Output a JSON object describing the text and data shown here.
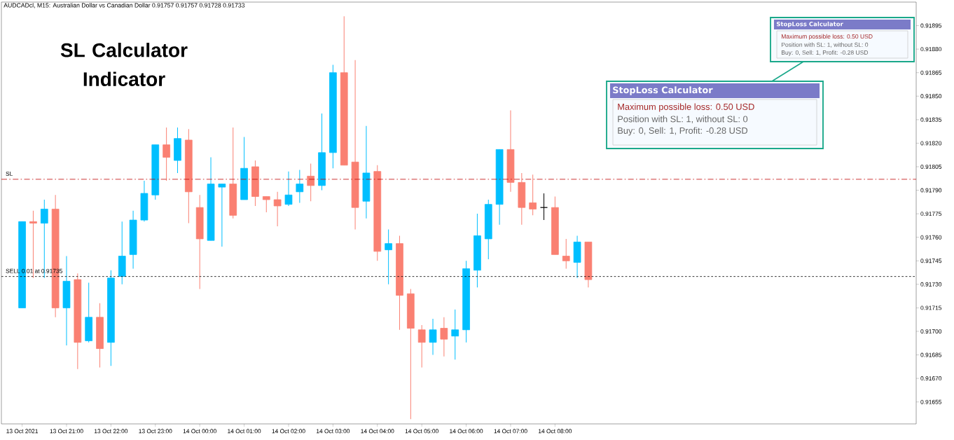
{
  "chart_data": {
    "type": "candlestick",
    "title": "SL Calculator Indicator",
    "subtitle": "AUDCADcl, M15:  Australian Dollar vs Canadian Dollar  0.91757 0.91757 0.91728 0.91733",
    "x": [
      "2021-10-13T20:00",
      "2021-10-13T20:15",
      "2021-10-13T20:30",
      "2021-10-13T20:45",
      "2021-10-13T21:00",
      "2021-10-13T21:15",
      "2021-10-13T21:30",
      "2021-10-13T21:45",
      "2021-10-13T22:00",
      "2021-10-13T22:15",
      "2021-10-13T22:30",
      "2021-10-13T22:45",
      "2021-10-13T23:00",
      "2021-10-13T23:15",
      "2021-10-13T23:30",
      "2021-10-13T23:45",
      "2021-10-14T00:00",
      "2021-10-14T00:15",
      "2021-10-14T00:30",
      "2021-10-14T00:45",
      "2021-10-14T01:00",
      "2021-10-14T01:15",
      "2021-10-14T01:30",
      "2021-10-14T01:45",
      "2021-10-14T02:00",
      "2021-10-14T02:15",
      "2021-10-14T02:30",
      "2021-10-14T02:45",
      "2021-10-14T03:00",
      "2021-10-14T03:15",
      "2021-10-14T03:30",
      "2021-10-14T03:45",
      "2021-10-14T04:00",
      "2021-10-14T04:15",
      "2021-10-14T04:30",
      "2021-10-14T04:45",
      "2021-10-14T05:00",
      "2021-10-14T05:15",
      "2021-10-14T05:30",
      "2021-10-14T05:45",
      "2021-10-14T06:00",
      "2021-10-14T06:15",
      "2021-10-14T06:30",
      "2021-10-14T06:45",
      "2021-10-14T07:00",
      "2021-10-14T07:15",
      "2021-10-14T07:30",
      "2021-10-14T07:45",
      "2021-10-14T08:00",
      "2021-10-14T08:15",
      "2021-10-14T08:30",
      "2021-10-14T08:45"
    ],
    "ohlc": [
      [
        0.91715,
        0.9177,
        0.91715,
        0.9177
      ],
      [
        0.9177,
        0.91777,
        0.91734,
        0.91769
      ],
      [
        0.91769,
        0.91784,
        0.91734,
        0.91778
      ],
      [
        0.91778,
        0.91787,
        0.91709,
        0.91715
      ],
      [
        0.91715,
        0.91748,
        0.91691,
        0.91732
      ],
      [
        0.91733,
        0.91737,
        0.91676,
        0.91693
      ],
      [
        0.91694,
        0.91731,
        0.91693,
        0.91709
      ],
      [
        0.91709,
        0.91718,
        0.91677,
        0.91689
      ],
      [
        0.91693,
        0.91739,
        0.91678,
        0.91734
      ],
      [
        0.91735,
        0.9177,
        0.9173,
        0.91748
      ],
      [
        0.91749,
        0.91777,
        0.9174,
        0.91771
      ],
      [
        0.91771,
        0.91796,
        0.9177,
        0.91788
      ],
      [
        0.91787,
        0.91819,
        0.91784,
        0.91819
      ],
      [
        0.91819,
        0.9183,
        0.91796,
        0.91811
      ],
      [
        0.91809,
        0.9183,
        0.91801,
        0.91823
      ],
      [
        0.91822,
        0.91829,
        0.91769,
        0.91789
      ],
      [
        0.91779,
        0.91787,
        0.91727,
        0.91759
      ],
      [
        0.91758,
        0.91811,
        0.91758,
        0.91794
      ],
      [
        0.91792,
        0.91794,
        0.91754,
        0.91794
      ],
      [
        0.91794,
        0.9183,
        0.91772,
        0.91774
      ],
      [
        0.91784,
        0.91824,
        0.91784,
        0.91804
      ],
      [
        0.91805,
        0.91809,
        0.9178,
        0.91786
      ],
      [
        0.91786,
        0.91786,
        0.91776,
        0.91784
      ],
      [
        0.91784,
        0.91789,
        0.91767,
        0.9178
      ],
      [
        0.91781,
        0.91802,
        0.9178,
        0.91787
      ],
      [
        0.91789,
        0.91803,
        0.91782,
        0.91794
      ],
      [
        0.91799,
        0.91807,
        0.91783,
        0.91793
      ],
      [
        0.91793,
        0.91839,
        0.9179,
        0.91814
      ],
      [
        0.91814,
        0.9187,
        0.91804,
        0.91865
      ],
      [
        0.91865,
        0.91901,
        0.91806,
        0.91806
      ],
      [
        0.91808,
        0.91873,
        0.91765,
        0.91779
      ],
      [
        0.91783,
        0.91831,
        0.91772,
        0.91801
      ],
      [
        0.91802,
        0.91806,
        0.91745,
        0.91751
      ],
      [
        0.91752,
        0.91765,
        0.9173,
        0.91756
      ],
      [
        0.91756,
        0.91761,
        0.91701,
        0.91723
      ],
      [
        0.91724,
        0.91727,
        0.91644,
        0.91702
      ],
      [
        0.91701,
        0.91704,
        0.91677,
        0.91693
      ],
      [
        0.91693,
        0.91708,
        0.91685,
        0.91701
      ],
      [
        0.91702,
        0.91709,
        0.91684,
        0.91695
      ],
      [
        0.91697,
        0.91714,
        0.91682,
        0.91701
      ],
      [
        0.91701,
        0.91745,
        0.91693,
        0.9174
      ],
      [
        0.91739,
        0.91775,
        0.91728,
        0.91761
      ],
      [
        0.91759,
        0.91784,
        0.91746,
        0.91781
      ],
      [
        0.91781,
        0.91816,
        0.91768,
        0.91816
      ],
      [
        0.91816,
        0.91841,
        0.91789,
        0.91795
      ],
      [
        0.91795,
        0.91801,
        0.91768,
        0.91779
      ],
      [
        0.91782,
        0.918,
        0.91774,
        0.91778
      ],
      [
        0.91779,
        0.91788,
        0.91771,
        0.91779
      ],
      [
        0.91779,
        0.91786,
        0.91749,
        0.91749
      ],
      [
        0.91748,
        0.91759,
        0.9174,
        0.91745
      ],
      [
        0.91744,
        0.91761,
        0.91734,
        0.91757
      ],
      [
        0.91757,
        0.91757,
        0.91728,
        0.91733
      ]
    ],
    "colors": [
      "#00bfff",
      "#fa8072",
      "#00bfff",
      "#fa8072",
      "#00bfff",
      "#fa8072",
      "#00bfff",
      "#fa8072",
      "#00bfff",
      "#00bfff",
      "#00bfff",
      "#00bfff",
      "#00bfff",
      "#fa8072",
      "#00bfff",
      "#fa8072",
      "#fa8072",
      "#00bfff",
      "#00bfff",
      "#fa8072",
      "#00bfff",
      "#fa8072",
      "#fa8072",
      "#fa8072",
      "#00bfff",
      "#00bfff",
      "#fa8072",
      "#00bfff",
      "#00bfff",
      "#fa8072",
      "#fa8072",
      "#00bfff",
      "#fa8072",
      "#00bfff",
      "#fa8072",
      "#fa8072",
      "#fa8072",
      "#00bfff",
      "#fa8072",
      "#00bfff",
      "#00bfff",
      "#00bfff",
      "#00bfff",
      "#00bfff",
      "#fa8072",
      "#fa8072",
      "#fa8072",
      "#000000",
      "#fa8072",
      "#fa8072",
      "#00bfff",
      "#fa8072"
    ],
    "xlim": [
      "2021-10-13T19:32",
      "2021-10-14T16:08"
    ],
    "xticks": [
      {
        "value": "2021-10-13T20:00",
        "label": "13 Oct 2021"
      },
      {
        "value": "2021-10-13T21:00",
        "label": "13 Oct 21:00"
      },
      {
        "value": "2021-10-13T22:00",
        "label": "13 Oct 22:00"
      },
      {
        "value": "2021-10-13T23:00",
        "label": "13 Oct 23:00"
      },
      {
        "value": "2021-10-14T00:00",
        "label": "14 Oct 00:00"
      },
      {
        "value": "2021-10-14T01:00",
        "label": "14 Oct 01:00"
      },
      {
        "value": "2021-10-14T02:00",
        "label": "14 Oct 02:00"
      },
      {
        "value": "2021-10-14T03:00",
        "label": "14 Oct 03:00"
      },
      {
        "value": "2021-10-14T04:00",
        "label": "14 Oct 04:00"
      },
      {
        "value": "2021-10-14T05:00",
        "label": "14 Oct 05:00"
      },
      {
        "value": "2021-10-14T06:00",
        "label": "14 Oct 06:00"
      },
      {
        "value": "2021-10-14T07:00",
        "label": "14 Oct 07:00"
      },
      {
        "value": "2021-10-14T08:00",
        "label": "14 Oct 08:00"
      }
    ],
    "ylim": [
      0.91641,
      0.9191
    ],
    "yticks": [
      0.91655,
      {
        "value": 0.9167,
        "label": "0.91670"
      },
      0.91685,
      {
        "value": 0.917,
        "label": "0.91700"
      },
      0.91715,
      {
        "value": 0.9173,
        "label": "0.91730"
      },
      0.91745,
      {
        "value": 0.9176,
        "label": "0.91760"
      },
      0.91775,
      {
        "value": 0.9179,
        "label": "0.91790"
      },
      0.91805,
      {
        "value": 0.9182,
        "label": "0.91820"
      },
      0.91835,
      {
        "value": 0.9185,
        "label": "0.91850"
      },
      0.91865,
      {
        "value": 0.9188,
        "label": "0.91880"
      },
      0.91895
    ],
    "ref_lines": [
      {
        "axis": "y",
        "value": 0.91797,
        "label": "SL",
        "color": "#c00000",
        "line_style": "dashed"
      },
      {
        "axis": "y",
        "value": 0.91735,
        "label": "SELL 0.01 at 0.91735",
        "color": "#000000",
        "line_style": "dotted"
      }
    ],
    "annotations": [
      "StopLoss Calculator",
      "Maximum possible loss: 0.50 USD",
      "Position with SL: 1, without SL: 0",
      "Buy: 0, Sell: 1, Profit: -0.28 USD",
      "StopLoss Calculator",
      "Maximum possible loss: 0.50 USD",
      "Position with SL: 1, without SL: 0",
      "Buy: 0, Sell: 1, Profit: -0.28 USD"
    ]
  }
}
